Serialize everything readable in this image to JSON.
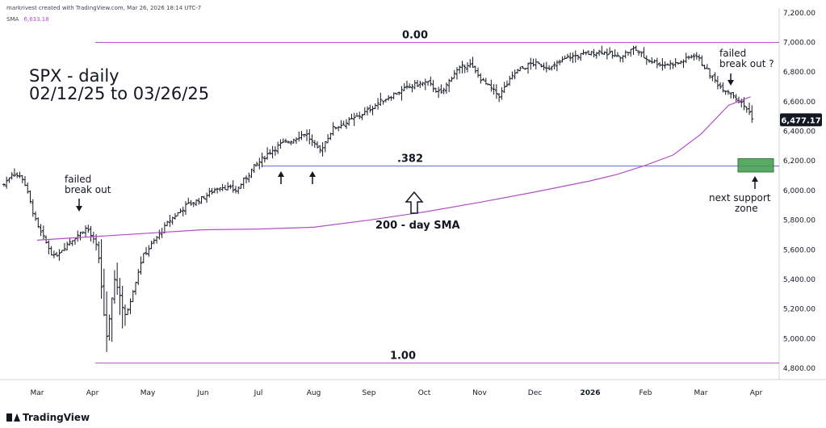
{
  "header": {
    "credit": "markrivest created with TradingView.com, Mar 26, 2026 18:14 UTC-7",
    "indicator_name": "SMA",
    "indicator_value": "6,633.18",
    "indicator_color": "#b44fc8"
  },
  "brand": {
    "label": "TradingView"
  },
  "chart_data": {
    "type": "ohlc-bar",
    "title": "SPX - daily",
    "subtitle": "02/12/25 to 03/26/25",
    "y_ticks": [
      "4,800.00",
      "5,000.00",
      "5,200.00",
      "5,400.00",
      "5,600.00",
      "5,800.00",
      "6,000.00",
      "6,200.00",
      "6,400.00",
      "6,600.00",
      "6,800.00",
      "7,000.00",
      "7,200.00"
    ],
    "ylim": [
      4720,
      7230
    ],
    "x_ticks": [
      "Mar",
      "Apr",
      "May",
      "Jun",
      "Jul",
      "Aug",
      "Sep",
      "Oct",
      "Nov",
      "Dec",
      "2026",
      "Feb",
      "Mar",
      "Apr"
    ],
    "last_price_label": "6,477.17",
    "fib_levels": [
      {
        "label": "0.00",
        "value": 7000
      },
      {
        "label": ".382",
        "value": 6165
      },
      {
        "label": "1.00",
        "value": 4835
      }
    ],
    "sma": {
      "name": "200 - day SMA",
      "color": "#b44fc8",
      "points": [
        [
          0,
          5665
        ],
        [
          3,
          5735
        ],
        [
          4,
          5740
        ],
        [
          5,
          5752
        ],
        [
          6,
          5800
        ],
        [
          7,
          5855
        ],
        [
          8,
          5920
        ],
        [
          9,
          5990
        ],
        [
          10,
          6065
        ],
        [
          10.5,
          6110
        ],
        [
          11,
          6170
        ],
        [
          11.5,
          6240
        ],
        [
          12,
          6380
        ],
        [
          12.5,
          6575
        ],
        [
          12.9,
          6633
        ]
      ]
    },
    "price_path": [
      [
        -0.6,
        6040
      ],
      [
        -0.45,
        6120
      ],
      [
        -0.25,
        6080
      ],
      [
        0,
        5760
      ],
      [
        0.3,
        5550
      ],
      [
        0.6,
        5660
      ],
      [
        0.9,
        5750
      ],
      [
        1.1,
        5600
      ],
      [
        1.25,
        5000
      ],
      [
        1.4,
        5400
      ],
      [
        1.6,
        5150
      ],
      [
        1.9,
        5550
      ],
      [
        2.1,
        5650
      ],
      [
        2.4,
        5800
      ],
      [
        2.7,
        5900
      ],
      [
        3,
        5950
      ],
      [
        3.3,
        6030
      ],
      [
        3.6,
        6000
      ],
      [
        3.9,
        6150
      ],
      [
        4.2,
        6260
      ],
      [
        4.4,
        6310
      ],
      [
        4.6,
        6340
      ],
      [
        4.85,
        6390
      ],
      [
        5.1,
        6260
      ],
      [
        5.35,
        6420
      ],
      [
        5.6,
        6460
      ],
      [
        5.9,
        6520
      ],
      [
        6.2,
        6600
      ],
      [
        6.5,
        6660
      ],
      [
        6.8,
        6710
      ],
      [
        7.05,
        6730
      ],
      [
        7.3,
        6650
      ],
      [
        7.55,
        6800
      ],
      [
        7.8,
        6860
      ],
      [
        8.05,
        6740
      ],
      [
        8.35,
        6640
      ],
      [
        8.65,
        6800
      ],
      [
        8.95,
        6860
      ],
      [
        9.3,
        6830
      ],
      [
        9.6,
        6900
      ],
      [
        9.9,
        6920
      ],
      [
        10.2,
        6940
      ],
      [
        10.5,
        6900
      ],
      [
        10.8,
        6960
      ],
      [
        11.0,
        6890
      ],
      [
        11.3,
        6850
      ],
      [
        11.6,
        6860
      ],
      [
        11.9,
        6920
      ],
      [
        12.15,
        6790
      ],
      [
        12.35,
        6700
      ],
      [
        12.55,
        6660
      ],
      [
        12.7,
        6600
      ],
      [
        12.85,
        6545
      ],
      [
        12.95,
        6477
      ]
    ],
    "support_zone": {
      "label": "next support zone",
      "range": [
        6125,
        6215
      ],
      "color": "#3f9a4a"
    },
    "annotations": [
      {
        "id": "failed-breakout-1",
        "text": [
          "failed",
          "break out"
        ]
      },
      {
        "id": "failed-breakout-2",
        "text": [
          "failed",
          "break out ?"
        ]
      },
      {
        "id": "next-support",
        "text": [
          "next support",
          "zone"
        ]
      },
      {
        "id": "sma-label",
        "text": [
          "200 - day SMA"
        ]
      }
    ]
  }
}
